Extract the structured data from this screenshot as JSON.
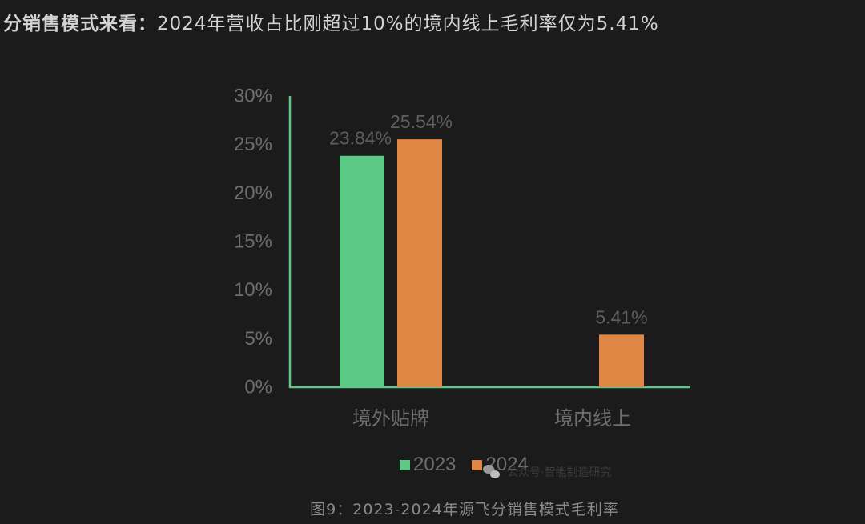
{
  "headline": {
    "lead": "分销售模式来看：",
    "rest": "2024年营收占比刚超过10%的境内线上毛利率仅为5.41%"
  },
  "chart_data": {
    "type": "bar",
    "categories": [
      "境外贴牌",
      "境内线上"
    ],
    "series": [
      {
        "name": "2023",
        "values": [
          23.84,
          null
        ],
        "labels": [
          "23.84%",
          ""
        ],
        "color": "#5cc986"
      },
      {
        "name": "2024",
        "values": [
          25.54,
          5.41
        ],
        "labels": [
          "25.54%",
          "5.41%"
        ],
        "color": "#e08644"
      }
    ],
    "yticks": [
      "0%",
      "5%",
      "10%",
      "15%",
      "20%",
      "25%",
      "30%"
    ],
    "ylim": [
      0,
      30
    ],
    "axis_color": "#5cc986",
    "grid": false,
    "legend_position": "bottom"
  },
  "legend": [
    "2023",
    "2024"
  ],
  "watermark": "公众号·智能制造研究",
  "caption": "图9：2023-2024年源飞分销售模式毛利率"
}
